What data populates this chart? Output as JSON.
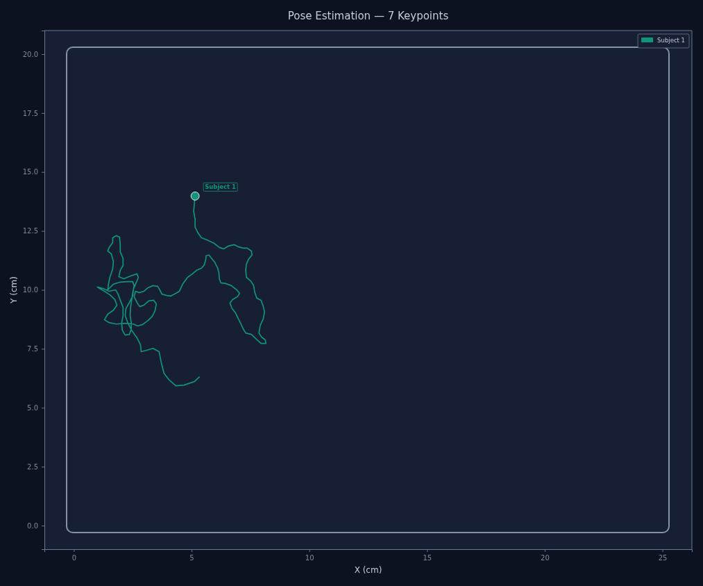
{
  "chart_data": {
    "type": "line",
    "title": "Pose Estimation — 7 Keypoints",
    "xlabel": "X (cm)",
    "ylabel": "Y (cm)",
    "xlim": [
      -1.25,
      26.25
    ],
    "ylim": [
      -1,
      21
    ],
    "xticks": [
      0,
      5,
      10,
      15,
      20,
      25
    ],
    "yticks": [
      {
        "value": 0,
        "label": "0.0"
      },
      {
        "value": 2.5,
        "label": "2.5"
      },
      {
        "value": 5,
        "label": "5.0"
      },
      {
        "value": 7.5,
        "label": "7.5"
      },
      {
        "value": 10,
        "label": "10.0"
      },
      {
        "value": 12.5,
        "label": "12.5"
      },
      {
        "value": 15,
        "label": "15.0"
      },
      {
        "value": 17.5,
        "label": "17.5"
      },
      {
        "value": 20,
        "label": "20.0"
      }
    ],
    "grid": false,
    "legend": "top right",
    "line_style": "solid",
    "series": [
      {
        "name": "Subject 1",
        "color": "#13937a",
        "x": [
          5.33,
          5.12,
          4.68,
          4.33,
          4.03,
          3.83,
          3.71,
          3.62,
          3.36,
          3.06,
          2.86,
          2.83,
          2.68,
          2.47,
          2.3,
          2.18,
          2.21,
          2.36,
          2.5,
          2.53,
          2.68,
          2.74,
          2.68,
          2.41,
          2.12,
          1.91,
          1.97,
          2.09,
          2.09,
          1.97,
          1.97,
          1.94,
          1.8,
          1.65,
          1.65,
          1.5,
          1.44,
          1.59,
          1.68,
          1.65,
          1.53,
          1.47,
          1.44,
          1.68,
          1.97,
          2.27,
          2.5,
          2.56,
          2.5,
          2.47,
          2.41,
          2.39,
          2.44,
          2.44,
          2.36,
          2.18,
          2.06,
          2.03,
          2.09,
          2.09,
          1.94,
          1.88,
          1.77,
          1.5,
          1.24,
          1.0,
          1.3,
          1.53,
          1.74,
          1.83,
          1.68,
          1.44,
          1.3,
          1.5,
          1.8,
          2.18,
          2.53,
          2.71,
          2.92,
          3.15,
          3.33,
          3.45,
          3.5,
          3.39,
          3.18,
          2.97,
          2.8,
          2.68,
          2.56,
          2.62,
          2.77,
          2.97,
          3.15,
          3.36,
          3.56,
          3.65,
          3.74,
          3.95,
          4.12,
          4.33,
          4.48,
          4.62,
          4.83,
          5.04,
          5.21,
          5.42,
          5.54,
          5.6,
          5.62,
          5.74,
          5.83,
          5.98,
          6.1,
          6.16,
          6.18,
          6.24,
          6.45,
          6.69,
          6.92,
          7.04,
          6.95,
          6.74,
          6.63,
          6.71,
          6.86,
          6.98,
          7.07,
          7.19,
          7.3,
          7.54,
          7.75,
          7.95,
          8.16,
          8.13,
          7.98,
          7.86,
          7.92,
          8.04,
          8.1,
          8.04,
          7.95,
          7.77,
          7.69,
          7.63,
          7.51,
          7.33,
          7.3,
          7.33,
          7.42,
          7.57,
          7.54,
          7.36,
          7.19,
          6.98,
          6.8,
          6.57,
          6.36,
          6.18,
          5.95,
          5.65,
          5.42,
          5.27,
          5.15,
          5.15,
          5.09,
          5.12,
          5.15
        ],
        "values": [
          6.31,
          6.11,
          5.96,
          5.93,
          6.2,
          6.46,
          6.93,
          7.38,
          7.52,
          7.43,
          7.38,
          7.67,
          7.97,
          8.26,
          8.58,
          8.91,
          9.2,
          9.47,
          9.74,
          10.03,
          10.38,
          10.53,
          10.68,
          10.59,
          10.47,
          10.56,
          10.83,
          11.03,
          11.33,
          11.62,
          11.92,
          12.24,
          12.3,
          12.21,
          12.01,
          11.8,
          11.65,
          11.53,
          11.21,
          10.89,
          10.53,
          10.24,
          10.0,
          10.24,
          10.33,
          10.35,
          10.35,
          10.18,
          9.88,
          9.65,
          9.26,
          8.91,
          8.61,
          8.35,
          8.11,
          8.08,
          8.29,
          8.58,
          8.91,
          9.26,
          9.65,
          9.82,
          10.0,
          9.94,
          10.06,
          10.12,
          9.94,
          9.79,
          9.59,
          9.35,
          9.14,
          8.97,
          8.73,
          8.61,
          8.55,
          8.58,
          8.55,
          8.47,
          8.53,
          8.7,
          8.88,
          9.12,
          9.41,
          9.56,
          9.53,
          9.35,
          9.29,
          9.47,
          9.71,
          9.94,
          9.88,
          9.94,
          10.09,
          10.18,
          10.15,
          10.0,
          9.82,
          9.76,
          9.74,
          9.85,
          9.94,
          10.24,
          10.53,
          10.68,
          10.83,
          10.92,
          11.06,
          11.27,
          11.45,
          11.48,
          11.36,
          11.18,
          10.94,
          10.74,
          10.47,
          10.3,
          10.27,
          10.18,
          10.0,
          9.85,
          9.71,
          9.59,
          9.44,
          9.23,
          9.03,
          8.79,
          8.61,
          8.35,
          8.17,
          8.11,
          7.91,
          7.73,
          7.73,
          7.88,
          7.99,
          8.17,
          8.5,
          8.76,
          9.06,
          9.32,
          9.56,
          9.65,
          9.88,
          10.2,
          10.38,
          10.53,
          10.83,
          11.09,
          11.3,
          11.48,
          11.65,
          11.77,
          11.77,
          11.83,
          11.92,
          11.86,
          11.74,
          11.8,
          11.98,
          12.12,
          12.21,
          12.42,
          12.66,
          13.01,
          13.33,
          13.69,
          13.98
        ]
      },
      {
        "type": "scatter",
        "color": "#13937a",
        "marker": "circle",
        "x": [
          5.15
        ],
        "values": [
          13.98
        ]
      }
    ],
    "annotations": [
      {
        "text": "Subject 1",
        "x": 5.15,
        "y": 13.98
      }
    ]
  }
}
